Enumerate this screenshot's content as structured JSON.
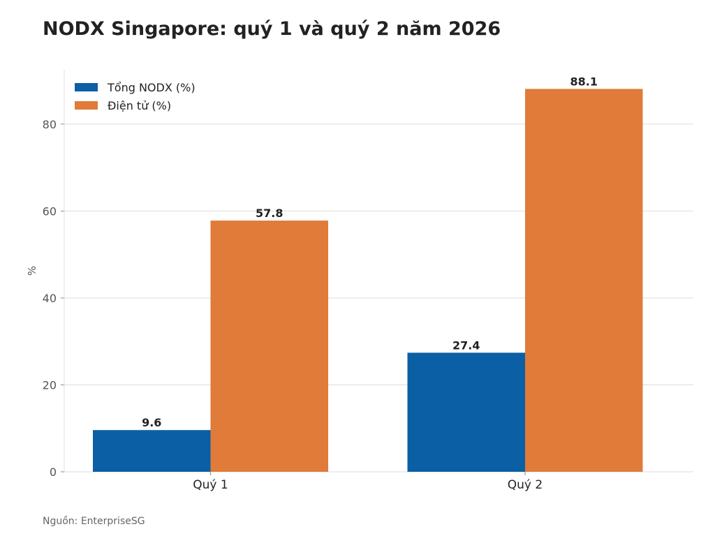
{
  "chart_data": {
    "type": "bar",
    "title": "NODX Singapore: quý 1 và quý 2 năm 2026",
    "xlabel": "",
    "ylabel": "%",
    "categories": [
      "Quý 1",
      "Quý 2"
    ],
    "series": [
      {
        "name": "Tổng NODX (%)",
        "values": [
          9.6,
          27.4
        ],
        "color": "#0b5fa5"
      },
      {
        "name": "Điện tử (%)",
        "values": [
          57.8,
          88.1
        ],
        "color": "#e07b39"
      }
    ],
    "value_labels": [
      [
        "9.6",
        "27.4"
      ],
      [
        "57.8",
        "88.1"
      ]
    ],
    "ylim": [
      0,
      92.5
    ],
    "yticks": [
      0,
      20,
      40,
      60,
      80
    ],
    "grid": true,
    "legend_position": "top-left"
  },
  "footer": {
    "source": "Nguồn: EnterpriseSG"
  }
}
